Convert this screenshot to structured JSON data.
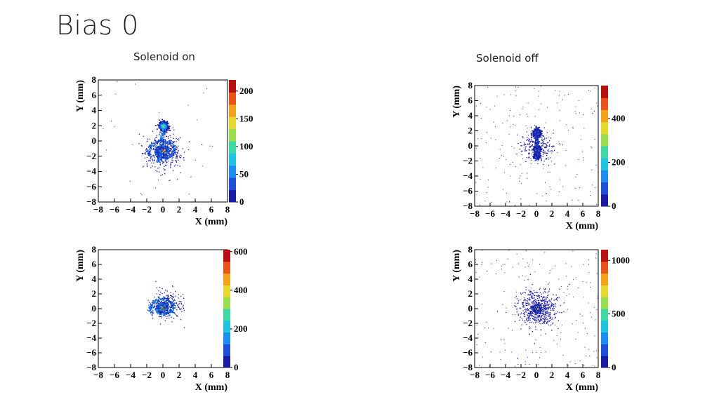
{
  "slide": {
    "title": "Bias 0"
  },
  "columns": {
    "left_label": "Solenoid on",
    "right_label": "Solenoid off"
  },
  "colors": {
    "palette": [
      "#1b1ba0",
      "#1f4fd6",
      "#1c8ef0",
      "#22c3df",
      "#3fd9a5",
      "#9bde4f",
      "#e5d830",
      "#f2a21d",
      "#e8541a",
      "#b51012"
    ],
    "frame": "#000000"
  },
  "chart_data": [
    {
      "type": "heatmap",
      "panel": "solenoid-on-top",
      "xlabel": "X (mm)",
      "ylabel": "Y (mm)",
      "xlim": [
        -8,
        8
      ],
      "ylim": [
        -8,
        8
      ],
      "x_ticks": [
        "−8",
        "−6",
        "−4",
        "−2",
        "0",
        "2",
        "4",
        "6",
        "8"
      ],
      "y_ticks": [
        "−8",
        "−6",
        "−4",
        "−2",
        "0",
        "2",
        "4",
        "6",
        "8"
      ],
      "z_max": 220,
      "z_ticks": [
        {
          "v": 0,
          "label": "0"
        },
        {
          "v": 50,
          "label": "50"
        },
        {
          "v": 100,
          "label": "100"
        },
        {
          "v": 150,
          "label": "150"
        },
        {
          "v": 200,
          "label": "200"
        }
      ],
      "features": [
        {
          "kind": "blob",
          "x": 0.0,
          "y": 2.0,
          "rx": 0.55,
          "ry": 0.6,
          "level": 0.55
        },
        {
          "kind": "blob",
          "x": 0.0,
          "y": -1.2,
          "rx": 0.6,
          "ry": 0.5,
          "level": 1.0
        },
        {
          "kind": "stripe",
          "x1": 0.0,
          "y1": 1.6,
          "x2": -0.6,
          "y2": -2.8,
          "level": 0.3
        },
        {
          "kind": "spiral",
          "x": 0.0,
          "y": -1.2,
          "r": 1.8,
          "level": 0.25
        },
        {
          "kind": "cloud",
          "x": 0.0,
          "y": -1.3,
          "r": 2.8,
          "density": 0.5
        }
      ],
      "background_noise": 0.01
    },
    {
      "type": "heatmap",
      "panel": "solenoid-off-top",
      "xlabel": "X (mm)",
      "ylabel": "Y (mm)",
      "xlim": [
        -8,
        8
      ],
      "ylim": [
        -8,
        8
      ],
      "x_ticks": [
        "−8",
        "−6",
        "−4",
        "−2",
        "0",
        "2",
        "4",
        "6",
        "8"
      ],
      "y_ticks": [
        "−8",
        "−6",
        "−4",
        "−2",
        "0",
        "2",
        "4",
        "6",
        "8"
      ],
      "z_max": 550,
      "z_ticks": [
        {
          "v": 0,
          "label": "0"
        },
        {
          "v": 200,
          "label": "200"
        },
        {
          "v": 400,
          "label": "400"
        }
      ],
      "features": [
        {
          "kind": "blob",
          "x": 0.0,
          "y": 1.8,
          "rx": 0.45,
          "ry": 0.55,
          "level": 0.25
        },
        {
          "kind": "blob",
          "x": 0.0,
          "y": -0.5,
          "rx": 0.35,
          "ry": 0.3,
          "level": 1.0
        },
        {
          "kind": "blob",
          "x": 0.0,
          "y": -1.3,
          "rx": 0.35,
          "ry": 0.3,
          "level": 0.2
        },
        {
          "kind": "stripe",
          "x1": 0.0,
          "y1": 2.0,
          "x2": 0.0,
          "y2": -1.6,
          "level": 0.15
        },
        {
          "kind": "cloud",
          "x": 0.0,
          "y": 0.0,
          "r": 2.2,
          "density": 0.4
        }
      ],
      "background_noise": 0.06
    },
    {
      "type": "heatmap",
      "panel": "solenoid-on-bottom",
      "xlabel": "X (mm)",
      "ylabel": "Y (mm)",
      "xlim": [
        -8,
        8
      ],
      "ylim": [
        -8,
        8
      ],
      "x_ticks": [
        "−8",
        "−6",
        "−4",
        "−2",
        "0",
        "2",
        "4",
        "6",
        "8"
      ],
      "y_ticks": [
        "−8",
        "−6",
        "−4",
        "−2",
        "0",
        "2",
        "4",
        "6",
        "8"
      ],
      "z_max": 610,
      "z_ticks": [
        {
          "v": 0,
          "label": "0"
        },
        {
          "v": 200,
          "label": "200"
        },
        {
          "v": 400,
          "label": "400"
        },
        {
          "v": 600,
          "label": "600"
        }
      ],
      "features": [
        {
          "kind": "blob",
          "x": 0.0,
          "y": 0.2,
          "rx": 0.5,
          "ry": 0.45,
          "level": 1.0
        },
        {
          "kind": "spiral",
          "x": 0.0,
          "y": 0.2,
          "r": 1.6,
          "level": 0.3
        },
        {
          "kind": "cloud",
          "x": 0.4,
          "y": 0.6,
          "r": 2.2,
          "density": 0.35
        }
      ],
      "background_noise": 0.0
    },
    {
      "type": "heatmap",
      "panel": "solenoid-off-bottom",
      "xlabel": "X (mm)",
      "ylabel": "Y (mm)",
      "xlim": [
        -8,
        8
      ],
      "ylim": [
        -8,
        8
      ],
      "x_ticks": [
        "−8",
        "−6",
        "−4",
        "−2",
        "0",
        "2",
        "4",
        "6",
        "8"
      ],
      "y_ticks": [
        "−8",
        "−6",
        "−4",
        "−2",
        "0",
        "2",
        "4",
        "6",
        "8"
      ],
      "z_max": 1100,
      "z_ticks": [
        {
          "v": 0,
          "label": "0"
        },
        {
          "v": 500,
          "label": "500"
        },
        {
          "v": 1000,
          "label": "1000"
        }
      ],
      "features": [
        {
          "kind": "blob",
          "x": 0.0,
          "y": 0.1,
          "rx": 0.45,
          "ry": 0.4,
          "level": 1.0
        },
        {
          "kind": "cloud",
          "x": 0.0,
          "y": 0.0,
          "r": 2.8,
          "density": 0.9
        }
      ],
      "background_noise": 0.06
    }
  ]
}
